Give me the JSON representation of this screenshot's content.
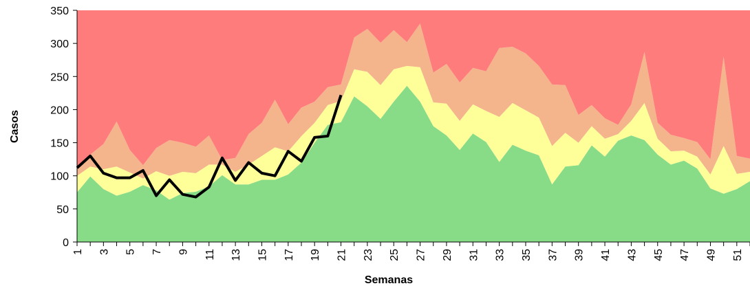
{
  "chart_data": {
    "type": "area",
    "stacked": true,
    "x_label": "Semanas",
    "y_label": "Casos",
    "categories": [
      1,
      null,
      3,
      null,
      5,
      null,
      7,
      null,
      9,
      null,
      11,
      null,
      13,
      null,
      15,
      null,
      17,
      null,
      19,
      null,
      21,
      null,
      23,
      null,
      25,
      null,
      27,
      null,
      29,
      null,
      31,
      null,
      33,
      null,
      35,
      null,
      37,
      null,
      39,
      null,
      41,
      null,
      43,
      null,
      45,
      null,
      47,
      null,
      49,
      null,
      51,
      null
    ],
    "ylim": [
      0,
      350
    ],
    "yticks": [
      0,
      50,
      100,
      150,
      200,
      250,
      300,
      350
    ],
    "series": [
      {
        "color": "#88dc88",
        "values": [
          75,
          99,
          80,
          70,
          76,
          86,
          78,
          64,
          74,
          76,
          84,
          101,
          87,
          87,
          94,
          94,
          102,
          120,
          150,
          177,
          181,
          220,
          205,
          186,
          212,
          236,
          212,
          175,
          161,
          139,
          164,
          151,
          121,
          147,
          138,
          131,
          87,
          114,
          116,
          146,
          129,
          153,
          161,
          154,
          132,
          117,
          123,
          111,
          81,
          73,
          80,
          92
        ]
      },
      {
        "color": "#ffff99",
        "values": [
          25,
          15,
          30,
          44,
          29,
          10,
          29,
          36,
          32,
          28,
          33,
          16,
          19,
          30,
          36,
          49,
          35,
          40,
          30,
          30,
          32,
          41,
          52,
          51,
          49,
          30,
          52,
          36,
          48,
          44,
          44,
          47,
          68,
          63,
          61,
          57,
          58,
          51,
          34,
          29,
          27,
          10,
          22,
          56,
          24,
          20,
          15,
          18,
          21,
          72,
          23,
          14
        ]
      },
      {
        "color": "#f4b48c",
        "values": [
          13,
          18,
          38,
          68,
          34,
          20,
          35,
          54,
          44,
          40,
          44,
          7,
          21,
          46,
          50,
          72,
          41,
          43,
          32,
          27,
          25,
          48,
          65,
          64,
          59,
          36,
          66,
          45,
          60,
          58,
          55,
          60,
          104,
          85,
          86,
          78,
          93,
          72,
          42,
          32,
          31,
          14,
          25,
          77,
          24,
          25,
          19,
          22,
          23,
          135,
          27,
          20
        ]
      },
      {
        "color": "#ff7c7c",
        "values": [
          237,
          218,
          202,
          168,
          211,
          234,
          208,
          196,
          200,
          206,
          189,
          226,
          223,
          187,
          170,
          135,
          172,
          147,
          138,
          116,
          112,
          41,
          28,
          49,
          30,
          48,
          20,
          94,
          81,
          109,
          87,
          92,
          57,
          55,
          65,
          84,
          112,
          113,
          158,
          143,
          163,
          173,
          142,
          63,
          170,
          188,
          193,
          199,
          225,
          70,
          220,
          224
        ]
      },
      {
        "type": "line",
        "color": "#000000",
        "values": [
          112,
          130,
          104,
          97,
          97,
          108,
          70,
          94,
          72,
          68,
          83,
          127,
          93,
          120,
          104,
          100,
          137,
          122,
          158,
          160,
          222,
          null,
          null,
          null,
          null,
          null,
          null,
          null,
          null,
          null,
          null,
          null,
          null,
          null,
          null,
          null,
          null,
          null,
          null,
          null,
          null,
          null,
          null,
          null,
          null,
          null,
          null,
          null,
          null,
          null,
          null,
          null
        ]
      }
    ]
  }
}
